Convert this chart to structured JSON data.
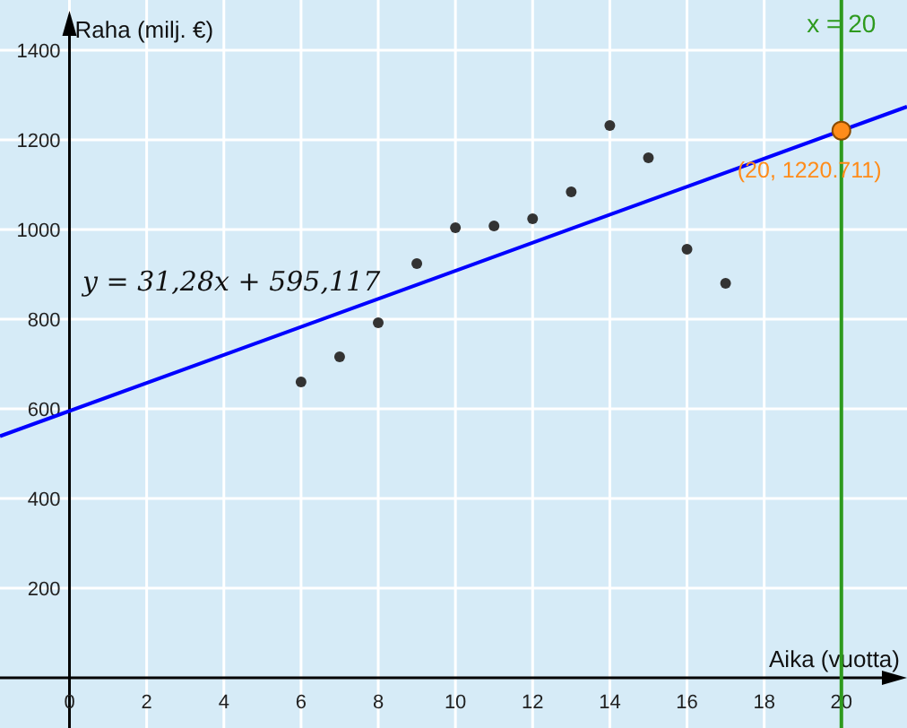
{
  "chart_data": {
    "type": "scatter",
    "xlabel": "Aika (vuotta)",
    "ylabel": "Raha (milj. €)",
    "xlim": [
      -1.8,
      21.7
    ],
    "ylim": [
      -112,
      1512
    ],
    "xticks": [
      0,
      2,
      4,
      6,
      8,
      10,
      12,
      14,
      16,
      18,
      20
    ],
    "yticks": [
      200,
      400,
      600,
      800,
      1000,
      1200,
      1400
    ],
    "grid": true,
    "marker": "circle",
    "series": [
      {
        "color": "#333333",
        "x": [
          6,
          7,
          8,
          9,
          10,
          11,
          12,
          13,
          14,
          15,
          16,
          17
        ],
        "values": [
          660,
          716,
          792,
          924,
          1004,
          1008,
          1024,
          1084,
          1232,
          1160,
          956,
          880
        ]
      },
      {
        "type": "line",
        "color": "#0000ff",
        "x": [
          -1.8,
          21.7
        ],
        "values": [
          539,
          1274
        ],
        "line_style": "solid",
        "marker": "none"
      },
      {
        "color": "#ff8c1a",
        "x": [
          20
        ],
        "values": [
          1220.711
        ]
      }
    ],
    "ref_lines": [
      {
        "axis": "x",
        "value": 20,
        "label": "x = 20",
        "color": "#2e9a1e"
      }
    ],
    "annotations": [
      {
        "text": "y = 31,28x + 595,117"
      },
      {
        "text": "(20, 1220.711)",
        "x": 20,
        "y": 1220.711
      }
    ]
  }
}
